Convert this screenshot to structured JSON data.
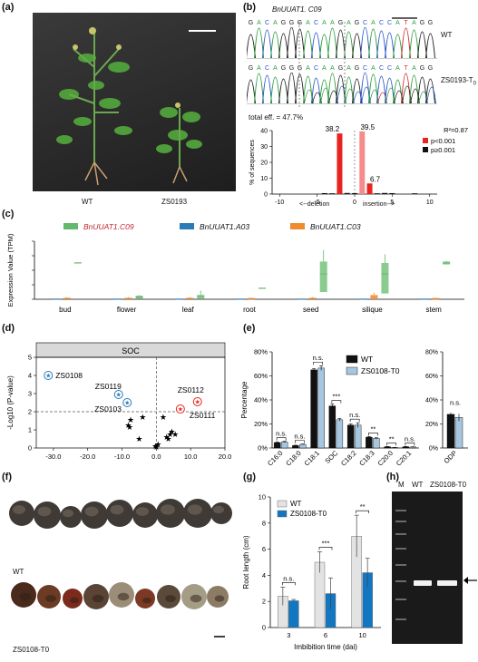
{
  "panels": {
    "a": {
      "letter": "(a)",
      "labels": [
        "WT",
        "ZS0193"
      ]
    },
    "b": {
      "letter": "(b)",
      "gene": "BnUUAT1. C09",
      "sequence": [
        "G",
        "A",
        "C",
        "A",
        "G",
        "G",
        "G",
        "A",
        "C",
        "A",
        "A",
        "G",
        "A",
        "G",
        "C",
        "A",
        "C",
        "C",
        "A",
        "T",
        "A",
        "G",
        "G"
      ],
      "wt_label": "WT",
      "mutant_label": "ZS0193-T",
      "mutant_sub": "0",
      "total_eff": "total eff. = 47.7%",
      "r2": "R²=0.87",
      "legend": [
        "p<0.001",
        "p≥0.001"
      ],
      "ylabel": "% of sequences",
      "xlabel_left": "<--deletion",
      "xlabel_right": "insertion-->"
    },
    "c": {
      "letter": "(c)",
      "legend": [
        "BnUUAT1.C09",
        "BnUUAT1.A03",
        "BnUUAT1.C03"
      ],
      "ylabel": "Expression Value (TPM)"
    },
    "d": {
      "letter": "(d)",
      "title": "SOC",
      "ylabel": "-Log10 (P-value)",
      "point_labels": [
        "ZS0108",
        "ZS0119",
        "ZS0103",
        "ZS0112",
        "ZS0111"
      ]
    },
    "e": {
      "letter": "(e)",
      "ylabel": "Percentage",
      "legend": [
        "WT",
        "ZS0108-T0"
      ]
    },
    "f": {
      "letter": "(f)",
      "labels": [
        "WT",
        "ZS0108-T0"
      ]
    },
    "g": {
      "letter": "(g)",
      "ylabel": "Root length (cm)",
      "xlabel": "Imbibition time (dai)",
      "legend": [
        "WT",
        "ZS0108-T0"
      ]
    },
    "h": {
      "letter": "(h)",
      "lanes": [
        "M",
        "WT",
        "ZS0108-T0"
      ]
    }
  },
  "colors": {
    "red": "#e8241f",
    "pink": "#f58b8b",
    "green": "#63b96b",
    "blue": "#2a7ab8",
    "orange": "#ef8a2e",
    "lightblue": "#a7c6df",
    "black": "#111111",
    "gblue": "#1277c0"
  },
  "chart_data": [
    {
      "id": "b-indel",
      "type": "bar",
      "ylabel": "% of sequences",
      "ylim": [
        0,
        40
      ],
      "yticks": [
        0,
        10,
        20,
        30,
        40
      ],
      "xticks": [
        -10,
        -5,
        0,
        5,
        10
      ],
      "series": [
        {
          "name": "p<0.001",
          "x": [
            -2,
            1,
            2
          ],
          "values": [
            38.2,
            39.5,
            6.7
          ]
        },
        {
          "name": "p≥0.001",
          "x": [
            -4,
            -3,
            -1,
            0,
            3,
            4,
            5,
            8
          ],
          "values": [
            0.3,
            0.2,
            0.4,
            0.3,
            0.2,
            0.4,
            0.3,
            0.2
          ]
        }
      ],
      "data_labels": [
        "38.2",
        "39.5",
        "6.7"
      ]
    },
    {
      "id": "c-expression",
      "type": "box",
      "ylabel": "Expression Value (TPM)",
      "ylim": [
        0,
        80
      ],
      "yticks": [
        0,
        20,
        40,
        60,
        80
      ],
      "categories": [
        "bud",
        "flower",
        "leaf",
        "root",
        "seed",
        "silique",
        "stem"
      ],
      "series": [
        {
          "name": "BnUUAT1.C09",
          "median": [
            50,
            3,
            4,
            15,
            35,
            35,
            50
          ],
          "q1": [
            50,
            1,
            1,
            15,
            10,
            8,
            48
          ],
          "q3": [
            51,
            5,
            6,
            16,
            52,
            50,
            52
          ],
          "max": [
            51,
            6,
            12,
            16,
            68,
            62,
            53
          ]
        },
        {
          "name": "BnUUAT1.A03",
          "median": [
            0,
            0,
            0,
            0,
            0,
            0,
            0
          ],
          "q1": [
            0,
            0,
            0,
            0,
            0,
            0,
            0
          ],
          "q3": [
            1,
            1,
            1,
            1,
            1,
            1,
            1
          ],
          "max": [
            1,
            1,
            1,
            1,
            1,
            1,
            1
          ]
        },
        {
          "name": "BnUUAT1.C03",
          "median": [
            1,
            1,
            1,
            1,
            1,
            3,
            1
          ],
          "q1": [
            0,
            0,
            0,
            0,
            0,
            0,
            0
          ],
          "q3": [
            2,
            2,
            2,
            1,
            2,
            6,
            1
          ],
          "max": [
            3,
            3,
            3,
            2,
            3,
            9,
            2
          ]
        }
      ]
    },
    {
      "id": "d-volcano",
      "type": "scatter",
      "title": "SOC",
      "xlim": [
        -35,
        20
      ],
      "ylim": [
        0,
        5
      ],
      "xticks": [
        -30.0,
        -20.0,
        -10.0,
        0.0,
        10.0,
        20.0
      ],
      "yticks": [
        0,
        1,
        2,
        3,
        4,
        5
      ],
      "threshold_y": 2,
      "highlighted": [
        {
          "label": "ZS0108",
          "x": -31.5,
          "y": 4.0
        },
        {
          "label": "ZS0119",
          "x": -11.0,
          "y": 2.95
        },
        {
          "label": "ZS0103",
          "x": -8.5,
          "y": 2.5
        },
        {
          "label": "ZS0112",
          "x": 12.0,
          "y": 2.55
        },
        {
          "label": "ZS0111",
          "x": 7.0,
          "y": 2.15
        }
      ],
      "points": [
        [
          -7.5,
          1.55
        ],
        [
          -8.2,
          1.25
        ],
        [
          -7.8,
          1.15
        ],
        [
          -4,
          1.7
        ],
        [
          -5,
          0.5
        ],
        [
          0.5,
          0.2
        ],
        [
          0,
          0.05
        ],
        [
          -0.3,
          0.1
        ],
        [
          3,
          0.6
        ],
        [
          3.5,
          0.5
        ],
        [
          4,
          0.75
        ],
        [
          4.5,
          0.9
        ],
        [
          5.5,
          0.75
        ],
        [
          2,
          1.7
        ]
      ]
    },
    {
      "id": "e-fattyacid",
      "type": "bar",
      "ylabel": "Percentage",
      "ylim": [
        0,
        80
      ],
      "yticks": [
        0,
        20,
        40,
        60,
        80
      ],
      "categories": [
        "C16:0",
        "C18:0",
        "C18:1",
        "SOC",
        "C18:2",
        "C18:3",
        "C20:0",
        "C20:1"
      ],
      "series": [
        {
          "name": "WT",
          "values": [
            4.5,
            2,
            65,
            35,
            19,
            9,
            1,
            1
          ],
          "err": [
            0.5,
            0.3,
            1,
            1.5,
            1,
            0.5,
            0.2,
            0.2
          ]
        },
        {
          "name": "ZS0108-T0",
          "values": [
            5,
            3,
            66.5,
            23.5,
            19,
            8,
            0.4,
            0.8
          ],
          "err": [
            0.5,
            0.3,
            2,
            1,
            2,
            0.5,
            0.1,
            0.2
          ]
        }
      ],
      "annotations": [
        "n.s.",
        "n.s.",
        "n.s.",
        "***",
        "n.s.",
        "**",
        "**",
        "n.s."
      ]
    },
    {
      "id": "e-odp",
      "type": "bar",
      "ylabel": "Percentage",
      "ylim": [
        0,
        80
      ],
      "yticks": [
        0,
        20,
        40,
        60,
        80
      ],
      "categories": [
        "ODP"
      ],
      "series": [
        {
          "name": "WT",
          "values": [
            28
          ],
          "err": [
            1.5
          ]
        },
        {
          "name": "ZS0108-T0",
          "values": [
            25.5
          ],
          "err": [
            3
          ]
        }
      ],
      "annotations": [
        "n.s."
      ]
    },
    {
      "id": "g-root",
      "type": "bar",
      "ylabel": "Root length (cm)",
      "xlabel": "Imbibition time (dai)",
      "ylim": [
        0,
        10
      ],
      "yticks": [
        0,
        2,
        4,
        6,
        8,
        10
      ],
      "categories": [
        "3",
        "6",
        "10"
      ],
      "series": [
        {
          "name": "WT",
          "values": [
            2.4,
            5.0,
            7.0
          ],
          "err": [
            0.7,
            0.8,
            1.6
          ]
        },
        {
          "name": "ZS0108-T0",
          "values": [
            2.05,
            2.6,
            4.2
          ],
          "err": [
            0.1,
            1.2,
            1.1
          ]
        }
      ],
      "annotations": [
        "n.s.",
        "***",
        "**"
      ]
    }
  ]
}
